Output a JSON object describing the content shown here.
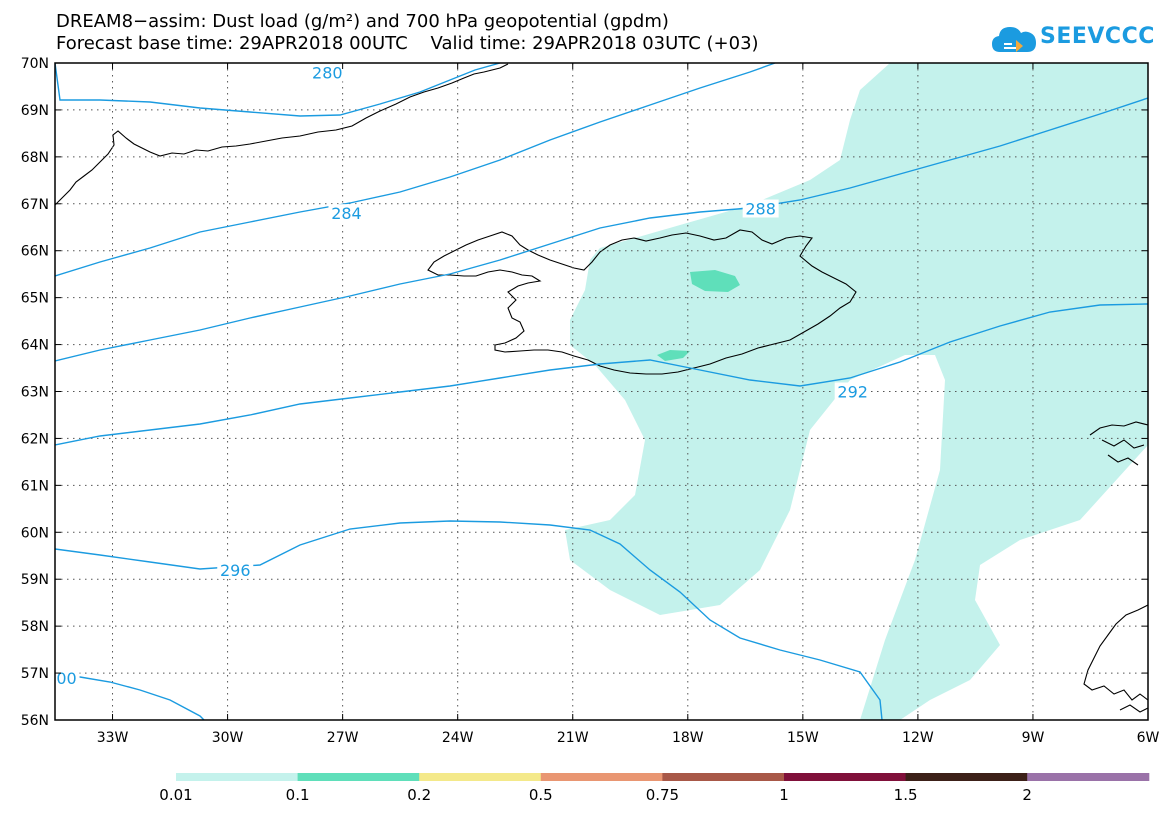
{
  "title_line1": "DREAM8−assim: Dust load (g/m²) and 700 hPa geopotential (gpdm)",
  "title_line2": "Forecast base time: 29APR2018 00UTC    Valid time: 29APR2018 03UTC (+03)",
  "logo_text": "SEEVCCC",
  "logo_icon": "cloud-icon",
  "map": {
    "lon_range": [
      -34.5,
      -6
    ],
    "lat_range": [
      56,
      70
    ],
    "lon_ticks": [
      {
        "v": -33,
        "label": "33W"
      },
      {
        "v": -30,
        "label": "30W"
      },
      {
        "v": -27,
        "label": "27W"
      },
      {
        "v": -24,
        "label": "24W"
      },
      {
        "v": -21,
        "label": "21W"
      },
      {
        "v": -18,
        "label": "18W"
      },
      {
        "v": -15,
        "label": "15W"
      },
      {
        "v": -12,
        "label": "12W"
      },
      {
        "v": -9,
        "label": "9W"
      },
      {
        "v": -6,
        "label": "6W"
      }
    ],
    "lat_ticks": [
      {
        "v": 70,
        "label": "70N"
      },
      {
        "v": 69,
        "label": "69N"
      },
      {
        "v": 68,
        "label": "68N"
      },
      {
        "v": 67,
        "label": "67N"
      },
      {
        "v": 66,
        "label": "66N"
      },
      {
        "v": 65,
        "label": "65N"
      },
      {
        "v": 64,
        "label": "64N"
      },
      {
        "v": 63,
        "label": "63N"
      },
      {
        "v": 62,
        "label": "62N"
      },
      {
        "v": 61,
        "label": "61N"
      },
      {
        "v": 60,
        "label": "60N"
      },
      {
        "v": 59,
        "label": "59N"
      },
      {
        "v": 58,
        "label": "58N"
      },
      {
        "v": 57,
        "label": "57N"
      },
      {
        "v": 56,
        "label": "56N"
      }
    ],
    "contour_labels": [
      {
        "text": "280",
        "lon": -27.4,
        "lat": 69.8
      },
      {
        "text": "284",
        "lon": -26.9,
        "lat": 66.8
      },
      {
        "text": "288",
        "lon": -16.1,
        "lat": 66.9
      },
      {
        "text": "292",
        "lon": -13.7,
        "lat": 63.0
      },
      {
        "text": "296",
        "lon": -29.8,
        "lat": 59.2
      },
      {
        "text": "00",
        "lon": -34.2,
        "lat": 56.9
      }
    ]
  },
  "colorbar": {
    "colors": [
      "#c4f2ec",
      "#5fdfba",
      "#f4e98a",
      "#e99672",
      "#a85848",
      "#80103a",
      "#3c2018",
      "#9a72a8"
    ],
    "labels": [
      "0.01",
      "0.1",
      "0.2",
      "0.5",
      "0.75",
      "1",
      "1.5",
      "2"
    ]
  },
  "colors": {
    "contour": "#1b9be0",
    "dust_low": "#c4f2ec",
    "dust_mid": "#5fdfba",
    "coast": "#000000"
  }
}
